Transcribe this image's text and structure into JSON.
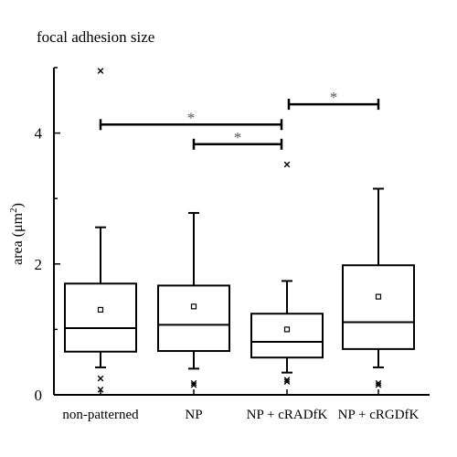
{
  "chart_data": {
    "type": "box",
    "title": "focal adhesion size",
    "ylabel_main": "area (μm",
    "ylabel_sup": "2",
    "ylabel_close": ")",
    "xlabel": "",
    "ylim": [
      0,
      5
    ],
    "yticks": [
      "0",
      "2",
      "4"
    ],
    "ytick_values": [
      0,
      2,
      4
    ],
    "grid": false,
    "categories": [
      "non-patterned",
      "NP",
      "NP + cRADfK",
      "NP + cRGDfK"
    ],
    "boxes": [
      {
        "whisker_low": 0.42,
        "q1": 0.66,
        "median": 1.02,
        "q3": 1.7,
        "whisker_high": 2.56,
        "mean": 1.3,
        "outliers": [
          0.25,
          0.08,
          4.95
        ]
      },
      {
        "whisker_low": 0.4,
        "q1": 0.67,
        "median": 1.07,
        "q3": 1.67,
        "whisker_high": 2.78,
        "mean": 1.35,
        "outliers": [
          0.18,
          0.15
        ]
      },
      {
        "whisker_low": 0.34,
        "q1": 0.57,
        "median": 0.81,
        "q3": 1.24,
        "whisker_high": 1.74,
        "mean": 1.0,
        "outliers": [
          0.23,
          0.2,
          3.52
        ]
      },
      {
        "whisker_low": 0.42,
        "q1": 0.7,
        "median": 1.11,
        "q3": 1.98,
        "whisker_high": 3.15,
        "mean": 1.5,
        "outliers": [
          0.18,
          0.15
        ]
      }
    ],
    "significance": [
      {
        "from": 0,
        "to": 2,
        "y": 4.13,
        "label": "*"
      },
      {
        "from": 1,
        "to": 2,
        "y": 3.83,
        "label": "*"
      },
      {
        "from": 2,
        "to": 3,
        "y": 4.44,
        "label": "*"
      }
    ],
    "colors": {
      "box": "#000000",
      "asterisk": "#555555"
    }
  }
}
